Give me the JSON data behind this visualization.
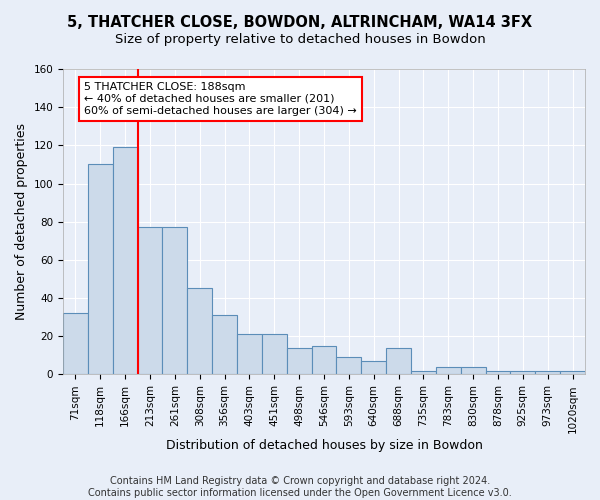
{
  "title1": "5, THATCHER CLOSE, BOWDON, ALTRINCHAM, WA14 3FX",
  "title2": "Size of property relative to detached houses in Bowdon",
  "xlabel": "Distribution of detached houses by size in Bowdon",
  "ylabel": "Number of detached properties",
  "footer1": "Contains HM Land Registry data © Crown copyright and database right 2024.",
  "footer2": "Contains public sector information licensed under the Open Government Licence v3.0.",
  "categories": [
    "71sqm",
    "118sqm",
    "166sqm",
    "213sqm",
    "261sqm",
    "308sqm",
    "356sqm",
    "403sqm",
    "451sqm",
    "498sqm",
    "546sqm",
    "593sqm",
    "640sqm",
    "688sqm",
    "735sqm",
    "783sqm",
    "830sqm",
    "878sqm",
    "925sqm",
    "973sqm",
    "1020sqm"
  ],
  "values": [
    32,
    110,
    119,
    77,
    77,
    45,
    31,
    21,
    21,
    14,
    15,
    9,
    7,
    14,
    2,
    4,
    4,
    2,
    2,
    2,
    2
  ],
  "bar_color": "#ccdaea",
  "bar_edge_color": "#5b8db8",
  "red_line_x": 2.5,
  "annotation_line1": "5 THATCHER CLOSE: 188sqm",
  "annotation_line2": "← 40% of detached houses are smaller (201)",
  "annotation_line3": "60% of semi-detached houses are larger (304) →",
  "annotation_box_color": "white",
  "annotation_box_edge": "red",
  "ylim": [
    0,
    160
  ],
  "yticks": [
    0,
    20,
    40,
    60,
    80,
    100,
    120,
    140,
    160
  ],
  "background_color": "#e8eef8",
  "grid_color": "white",
  "title_fontsize": 10.5,
  "subtitle_fontsize": 9.5,
  "ylabel_fontsize": 9,
  "xlabel_fontsize": 9,
  "tick_fontsize": 7.5,
  "footer_fontsize": 7,
  "annot_fontsize": 8
}
